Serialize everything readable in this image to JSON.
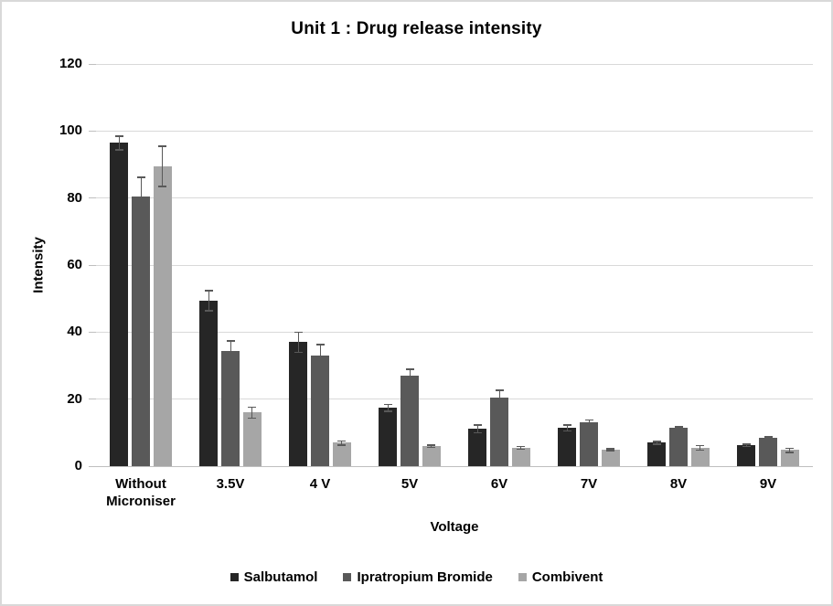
{
  "chart_data": {
    "type": "bar",
    "title": "Unit 1 : Drug release intensity",
    "xlabel": "Voltage",
    "ylabel": "Intensity",
    "ylim": [
      0,
      120
    ],
    "yticks": [
      0,
      20,
      40,
      60,
      80,
      100,
      120
    ],
    "grid": true,
    "error_bars": true,
    "legend_position": "bottom",
    "categories": [
      "Without Microniser",
      "3.5V",
      "4 V",
      "5V",
      "6V",
      "7V",
      "8V",
      "9V"
    ],
    "series": [
      {
        "name": "Salbutamol",
        "color": "#262626",
        "values": [
          96.5,
          49.5,
          37,
          17.5,
          11.2,
          11.5,
          7,
          6.3
        ],
        "errors": [
          2,
          3,
          3,
          1,
          1.2,
          0.9,
          0.4,
          0.3
        ]
      },
      {
        "name": "Ipratropium Bromide",
        "color": "#595959",
        "values": [
          80.5,
          34.5,
          33,
          27,
          20.5,
          13,
          11.5,
          8.4
        ],
        "errors": [
          5.7,
          3,
          3.3,
          2,
          2.2,
          0.8,
          0.3,
          0.4
        ]
      },
      {
        "name": "Combivent",
        "color": "#a6a6a6",
        "values": [
          89.5,
          16,
          7,
          6,
          5.5,
          5,
          5.5,
          4.8
        ],
        "errors": [
          6,
          1.6,
          0.6,
          0.4,
          0.4,
          0.3,
          0.7,
          0.6
        ]
      }
    ]
  },
  "colors": {
    "background": "#ffffff",
    "border": "#d9d9d9",
    "gridline": "#d9d9d9",
    "axis_line": "#bfbfbf",
    "error_bar": "#595959",
    "text": "#000000"
  }
}
